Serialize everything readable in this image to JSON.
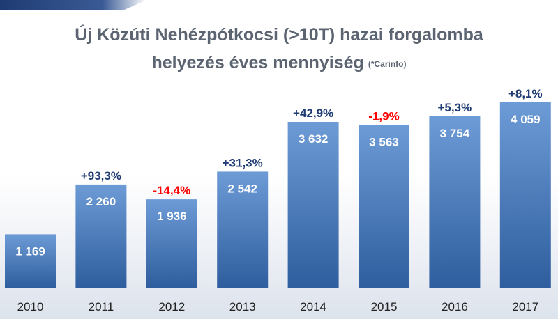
{
  "chart_data": {
    "type": "bar",
    "title_line1": "Új Közúti Nehézpótkocsi (>10T) hazai forgalomba",
    "title_line2": "helyezés éves mennyiség",
    "source_note": "(*Carinfo)",
    "categories": [
      "2010",
      "2011",
      "2012",
      "2013",
      "2014",
      "2015",
      "2016",
      "2017"
    ],
    "values": [
      1169,
      2260,
      1936,
      2542,
      3632,
      3563,
      3754,
      4059
    ],
    "value_labels": [
      "1 169",
      "2 260",
      "1 936",
      "2 542",
      "3 632",
      "3 563",
      "3 754",
      "4 059"
    ],
    "change_labels": [
      "",
      "+93,3%",
      "-14,4%",
      "+31,3%",
      "+42,9%",
      "-1,9%",
      "+5,3%",
      "+8,1%"
    ],
    "change_direction": [
      "none",
      "up",
      "down",
      "up",
      "up",
      "down",
      "up",
      "up"
    ],
    "ylim": [
      0,
      4059
    ],
    "colors": {
      "bar_top": "#6d9bd6",
      "bar_bottom": "#2f5e9e",
      "positive_change": "#1f3b73",
      "negative_change": "#ff0000"
    }
  }
}
